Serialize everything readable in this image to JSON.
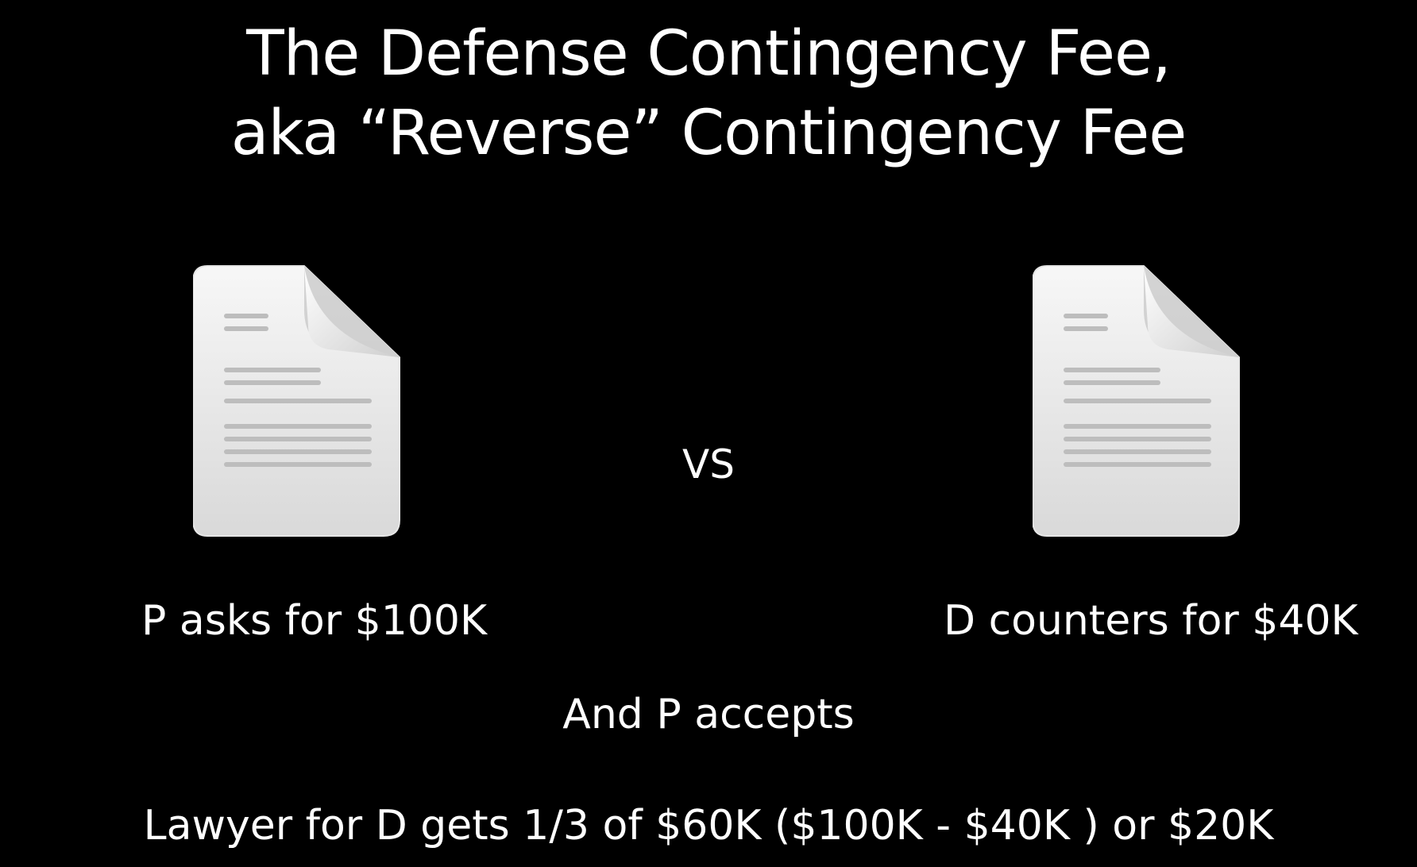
{
  "slide": {
    "title_line_1": "The Defense Contingency Fee,",
    "title_line_2": "aka “Reverse” Contingency Fee",
    "vs_label": "VS",
    "left_caption": "P asks for $100K",
    "right_caption": "D counters for $40K",
    "accept_text": "And P accepts",
    "result_text": "Lawyer for D gets 1/3 of $60K ($100K - $40K ) or $20K"
  },
  "icons": {
    "left": "document-icon",
    "right": "document-icon"
  },
  "colors": {
    "background": "#000000",
    "text": "#ffffff"
  }
}
